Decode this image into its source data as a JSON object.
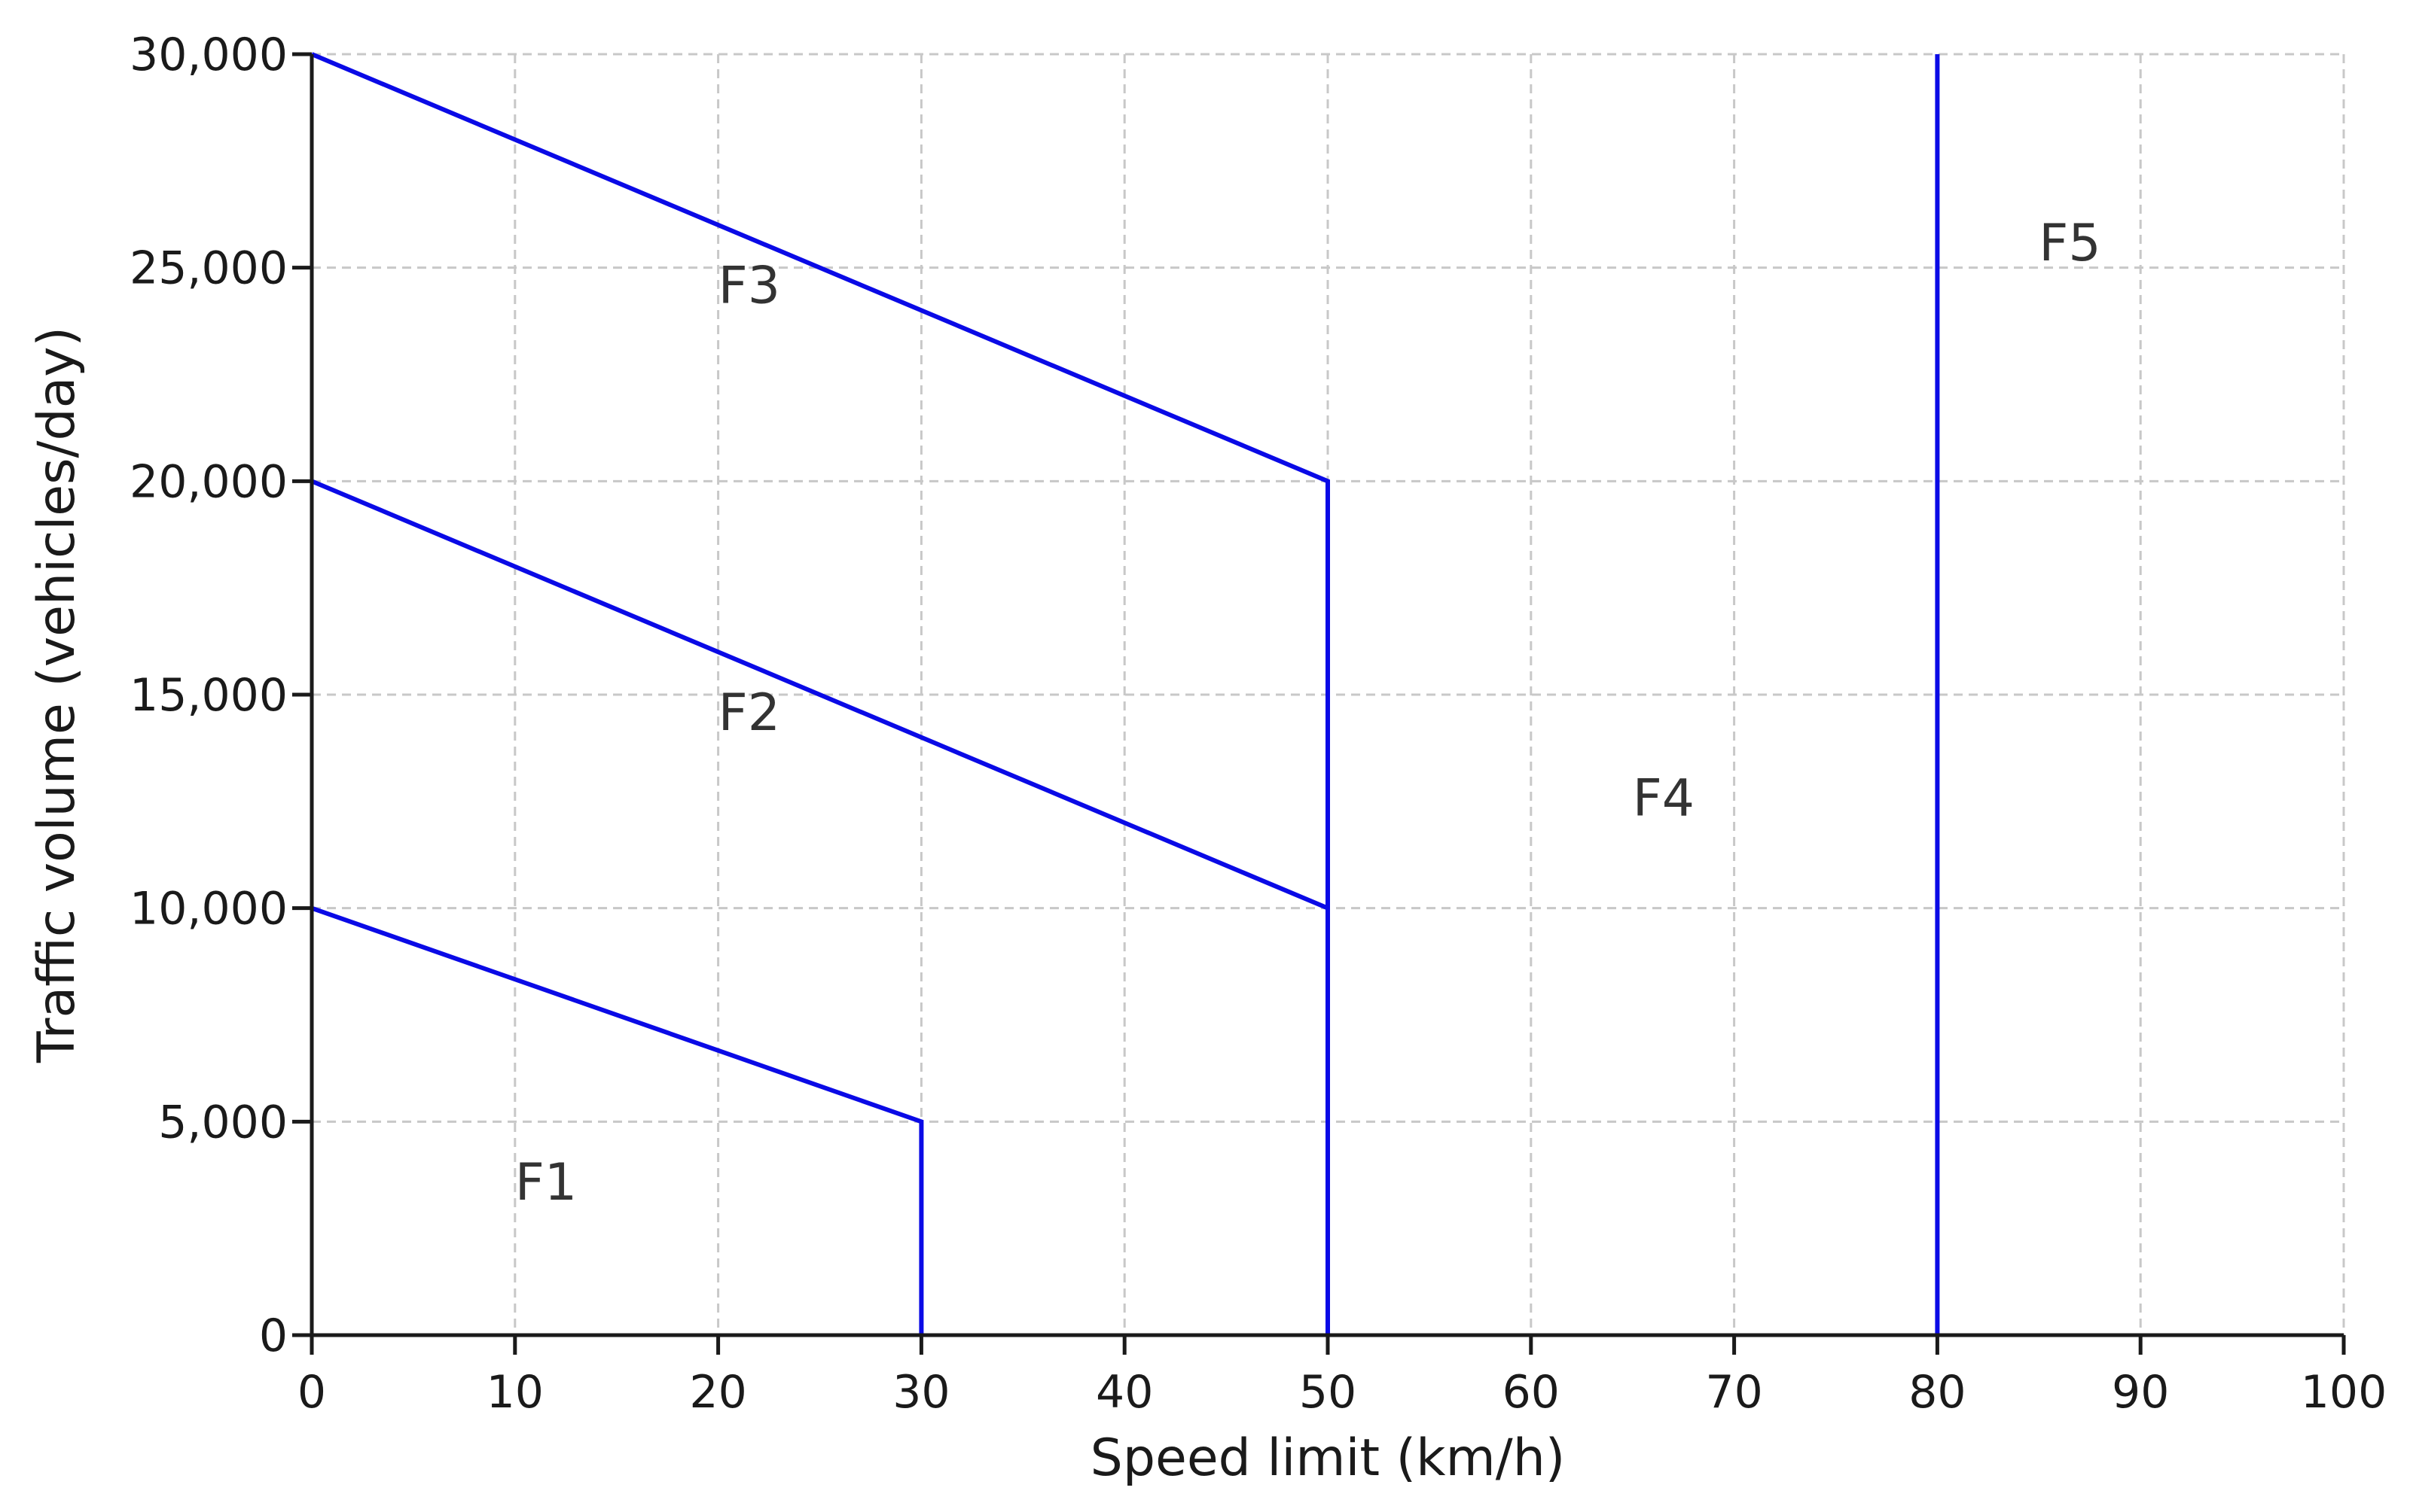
{
  "chart_data": {
    "type": "line",
    "title": "",
    "xlabel": "Speed limit (km/h)",
    "ylabel": "Traffic volume (vehicles/day)",
    "xlim": [
      0,
      100
    ],
    "ylim": [
      0,
      30000
    ],
    "x_ticks": [
      0,
      10,
      20,
      30,
      40,
      50,
      60,
      70,
      80,
      90,
      100
    ],
    "x_tick_labels": [
      "0",
      "10",
      "20",
      "30",
      "40",
      "50",
      "60",
      "70",
      "80",
      "90",
      "100"
    ],
    "y_ticks": [
      0,
      5000,
      10000,
      15000,
      20000,
      25000,
      30000
    ],
    "y_tick_labels": [
      "0",
      "5,000",
      "10,000",
      "15,000",
      "20,000",
      "25,000",
      "30,000"
    ],
    "grid": true,
    "line_color": "#0a0ae6",
    "boundaries": [
      {
        "points": [
          [
            0,
            10000
          ],
          [
            30,
            5000
          ],
          [
            30,
            0
          ]
        ]
      },
      {
        "points": [
          [
            0,
            20000
          ],
          [
            50,
            10000
          ]
        ]
      },
      {
        "points": [
          [
            0,
            30000
          ],
          [
            50,
            20000
          ],
          [
            50,
            0
          ]
        ]
      },
      {
        "points": [
          [
            80,
            0
          ],
          [
            80,
            30000
          ]
        ]
      }
    ],
    "zone_labels": [
      {
        "text": "F1",
        "x": 10,
        "y": 3500
      },
      {
        "text": "F2",
        "x": 20,
        "y": 14500
      },
      {
        "text": "F3",
        "x": 20,
        "y": 24500
      },
      {
        "text": "F4",
        "x": 65,
        "y": 12500
      },
      {
        "text": "F5",
        "x": 85,
        "y": 25500
      }
    ]
  }
}
